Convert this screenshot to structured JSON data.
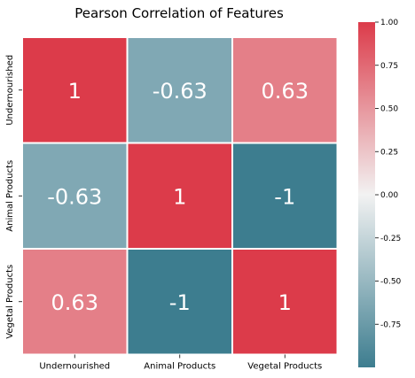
{
  "chart_data": {
    "type": "heatmap",
    "title": "Pearson Correlation of Features",
    "rows": [
      "Undernourished",
      "Animal Products",
      "Vegetal Products"
    ],
    "cols": [
      "Undernourished",
      "Animal Products",
      "Vegetal Products"
    ],
    "values": [
      [
        1,
        -0.63,
        0.63
      ],
      [
        -0.63,
        1,
        -1
      ],
      [
        0.63,
        -1,
        1
      ]
    ],
    "annotations": [
      [
        "1",
        "-0.63",
        "0.63"
      ],
      [
        "-0.63",
        "1",
        "-1"
      ],
      [
        "0.63",
        "-1",
        "1"
      ]
    ],
    "colorbar": {
      "min": -1,
      "max": 1,
      "ticks": [
        "-0.75",
        "-0.50",
        "-0.25",
        "0.00",
        "0.25",
        "0.50",
        "0.75",
        "1.00"
      ],
      "tick_values": [
        -0.75,
        -0.5,
        -0.25,
        0,
        0.25,
        0.5,
        0.75,
        1.0
      ]
    },
    "colors": {
      "negative": "#3d7d8f",
      "neutral": "#f2f2f2",
      "positive": "#dc3b4a"
    }
  }
}
